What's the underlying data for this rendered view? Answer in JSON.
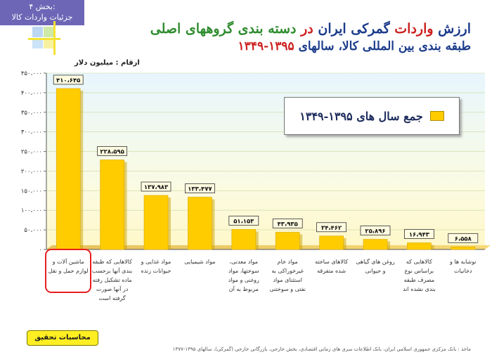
{
  "header": {
    "section_label": "بخش ۴:",
    "section_title": "جزئیات واردات کالا"
  },
  "title": {
    "line1_part1": "ارزش",
    "line1_part2": "واردات",
    "line1_part3": "گمرکی ایران",
    "line1_part4": "در",
    "line1_part5": "دسته بندی گروههای اصلی",
    "line2_part1": "طبقه بندی بین المللی کالا، سالهای",
    "line2_part2": "۱۳۹۵-۱۳۴۹"
  },
  "unit_label": "ارقام : میلیون دلار",
  "legend_label": "جمع سال های ۱۳۹۵-۱۳۴۹",
  "chart_data": {
    "type": "bar",
    "categories": [
      "ماشین آلات و لوازم حمل و نقل",
      "کالاهایی که طبقه بندی آنها برحسب ماده تشکیل رفته در آنها صورت گرفته است",
      "مواد غذایی و حیوانات زنده",
      "مواد شیمیایی",
      "مواد معدنی، سوختها، مواد روغنی و مواد مربوط به آن",
      "مواد خام غیرخوراکی به استثنای مواد نفتی و سوختنی",
      "کالاهای ساخته شده متفرقه",
      "روغن های گیاهی و حیوانی",
      "کالاهایی که براساس نوع مصرف طبقه بندی نشده اند",
      "نوشابه ها و دخانیات"
    ],
    "values": [
      410645,
      228595,
      137983,
      133477,
      51153,
      43935,
      34462,
      25896,
      16943,
      6558
    ],
    "value_labels": [
      "۴۱۰،۶۴۵",
      "۲۲۸،۵۹۵",
      "۱۳۷،۹۸۳",
      "۱۳۳،۴۷۷",
      "۵۱،۱۵۳",
      "۴۳،۹۳۵",
      "۳۴،۴۶۲",
      "۲۵،۸۹۶",
      "۱۶،۹۴۳",
      "۶،۵۵۸"
    ],
    "y_ticks": [
      0,
      50000,
      100000,
      150000,
      200000,
      250000,
      300000,
      350000,
      400000,
      450000
    ],
    "y_tick_labels": [
      "۰",
      "۵۰،۰۰۰",
      "۱۰۰،۰۰۰",
      "۱۵۰،۰۰۰",
      "۲۰۰،۰۰۰",
      "۲۵۰،۰۰۰",
      "۳۰۰،۰۰۰",
      "۳۵۰،۰۰۰",
      "۴۰۰،۰۰۰",
      "۴۵۰،۰۰۰"
    ],
    "ylim": [
      0,
      450000
    ],
    "bar_color": "#ffcc00",
    "grid": true
  },
  "colors": {
    "banner": "#6d66b6",
    "accent_red": "#cc1f1f",
    "accent_green": "#2f8c2f",
    "title_blue": "#1b3b8a"
  },
  "footer": {
    "calc_button": "محاسبات تحقیق",
    "source": "ماخذ : بانک مرکزی جمهوری اسلامی ایران، بانک اطلاعات سری های زمانی اقتصادی، بخش خارجی، بازرگانی خارجی (گمرکی)، سالهای ۱۳۹۵-۱۳۷۷"
  }
}
